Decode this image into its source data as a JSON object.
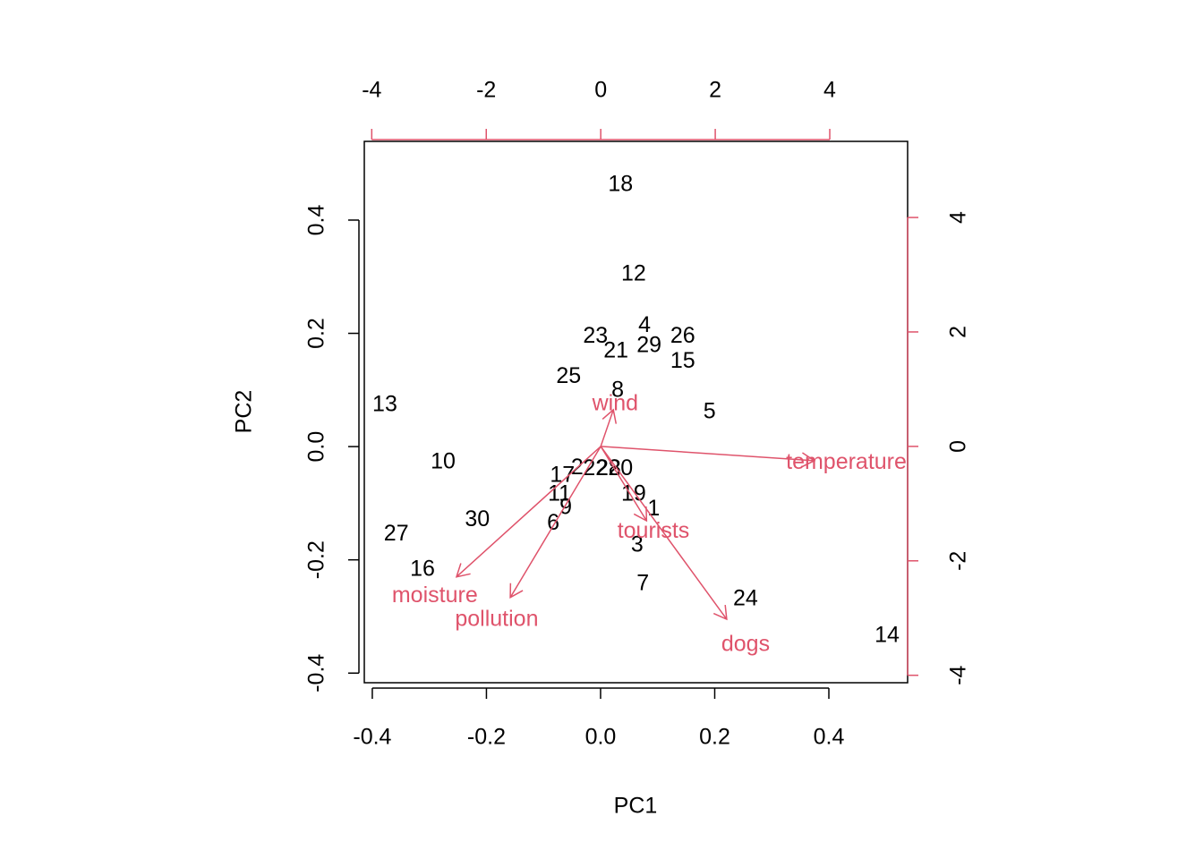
{
  "chart_data": {
    "type": "biplot",
    "xlabel": "PC1",
    "ylabel": "PC2",
    "xlim": [
      -0.414,
      0.538
    ],
    "ylim": [
      -0.417,
      0.539
    ],
    "xticks": [
      -0.4,
      -0.2,
      {
        "value": 0,
        "label": "0.0"
      },
      0.2,
      0.4
    ],
    "yticks": [
      -0.4,
      -0.2,
      {
        "value": 0,
        "label": "0.0"
      },
      0.2,
      0.4
    ],
    "x2lim": [
      -4.13,
      5.36
    ],
    "y2lim": [
      -4.13,
      5.33
    ],
    "x2ticks": [
      -4,
      -2,
      0,
      2,
      4
    ],
    "y2ticks": [
      -4,
      -2,
      0,
      2,
      4
    ],
    "points": {
      "color": "#000000",
      "labels": [
        "18",
        "12",
        "4",
        "26",
        "29",
        "23",
        "21",
        "15",
        "25",
        "8",
        "13",
        "5",
        "10",
        "17",
        "2",
        "22",
        "28",
        "20",
        "11",
        "19",
        "9",
        "1",
        "6",
        "30",
        "27",
        "3",
        "16",
        "7",
        "24",
        "14"
      ],
      "x": [
        0.035,
        0.058,
        0.077,
        0.144,
        0.085,
        -0.009,
        0.027,
        0.144,
        -0.056,
        0.03,
        -0.378,
        0.191,
        -0.276,
        -0.067,
        -0.041,
        -0.009,
        0.014,
        0.035,
        -0.072,
        0.058,
        -0.061,
        0.093,
        -0.083,
        -0.216,
        -0.358,
        0.064,
        -0.312,
        0.074,
        0.254,
        0.502
      ],
      "y": [
        0.462,
        0.304,
        0.213,
        0.194,
        0.177,
        0.194,
        0.168,
        0.15,
        0.123,
        0.098,
        0.073,
        0.06,
        -0.028,
        -0.052,
        -0.038,
        -0.04,
        -0.04,
        -0.04,
        -0.085,
        -0.085,
        -0.109,
        -0.111,
        -0.136,
        -0.13,
        -0.155,
        -0.175,
        -0.218,
        -0.243,
        -0.27,
        -0.335
      ]
    },
    "loadings": {
      "color": "#DF536B",
      "names": [
        "wind",
        "temperature",
        "tourists",
        "dogs",
        "moisture",
        "pollution"
      ],
      "x": [
        0.22,
        3.73,
        0.8,
        2.2,
        -2.52,
        -1.58
      ],
      "y": [
        0.64,
        -0.25,
        -1.3,
        -3.02,
        -2.28,
        -2.64
      ]
    }
  }
}
